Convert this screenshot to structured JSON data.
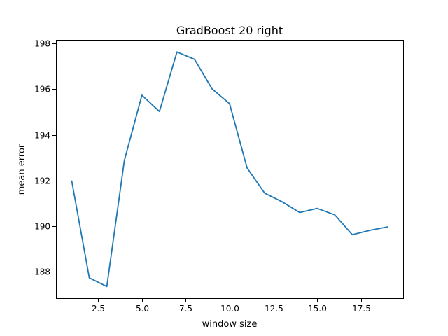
{
  "chart_data": {
    "type": "line",
    "title": "GradBoost 20 right",
    "xlabel": "window size",
    "ylabel": "mean error",
    "xlim": [
      0.1,
      19.9
    ],
    "ylim": [
      186.85,
      198.15
    ],
    "xticks": [
      2.5,
      5.0,
      7.5,
      10.0,
      12.5,
      15.0,
      17.5
    ],
    "xtick_labels": [
      "2.5",
      "5.0",
      "7.5",
      "10.0",
      "12.5",
      "15.0",
      "17.5"
    ],
    "yticks": [
      188,
      190,
      192,
      194,
      196,
      198
    ],
    "ytick_labels": [
      "188",
      "190",
      "192",
      "194",
      "196",
      "198"
    ],
    "grid": false,
    "series": [
      {
        "color": "#1f77b4",
        "x": [
          1,
          2,
          3,
          4,
          5,
          6,
          7,
          8,
          9,
          10,
          11,
          12,
          13,
          14,
          15,
          16,
          17,
          18,
          19
        ],
        "y": [
          191.98,
          187.74,
          187.36,
          192.88,
          195.73,
          195.02,
          197.62,
          197.3,
          196.01,
          195.36,
          192.55,
          191.45,
          191.07,
          190.6,
          190.78,
          190.5,
          189.63,
          189.82,
          189.97
        ]
      }
    ]
  }
}
